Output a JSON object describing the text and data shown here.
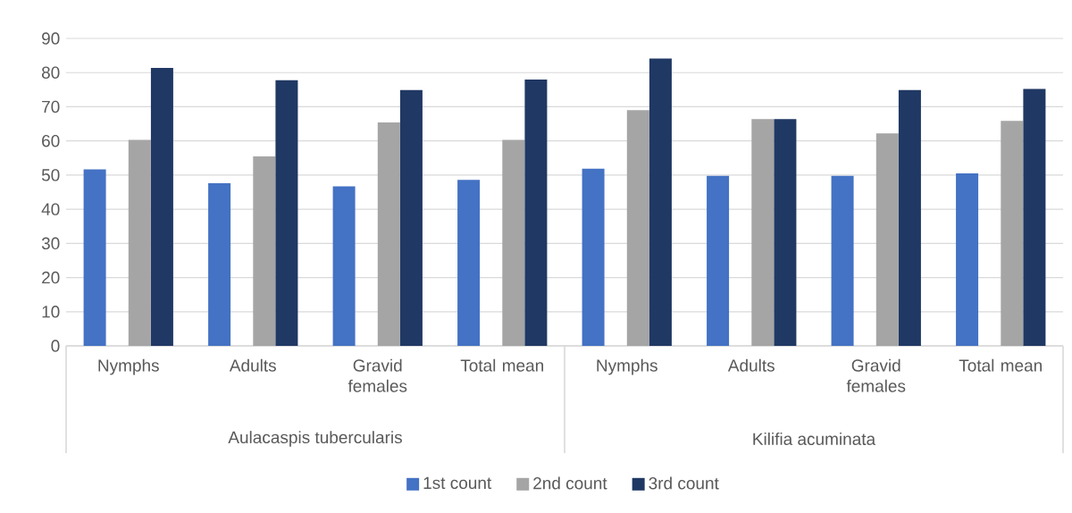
{
  "chart_data": {
    "type": "bar",
    "categories": [
      "Nymphs",
      "Adults",
      "Gravid females",
      "Total mean",
      "Nymphs",
      "Adults",
      "Gravid females",
      "Total mean"
    ],
    "series": [
      {
        "name": "1st count",
        "color": "#4472c4",
        "values": [
          51.7,
          47.6,
          46.7,
          48.6,
          51.9,
          49.8,
          49.8,
          50.5
        ]
      },
      {
        "name": "2nd count",
        "color": "#a5a5a5",
        "values": [
          60.3,
          55.5,
          65.4,
          60.3,
          69.0,
          66.4,
          62.2,
          65.9
        ]
      },
      {
        "name": "3rd count",
        "color": "#203864",
        "values": [
          81.4,
          77.8,
          74.9,
          78.0,
          84.1,
          66.4,
          74.9,
          75.2
        ]
      }
    ],
    "annotations": [
      "Aulacaspis tubercularis",
      "Kilifia acuminata"
    ],
    "ylim": [
      0,
      90
    ],
    "yticks": [
      0,
      10,
      20,
      30,
      40,
      50,
      60,
      70,
      80,
      90
    ],
    "grid": "y",
    "legend": "bottom"
  }
}
